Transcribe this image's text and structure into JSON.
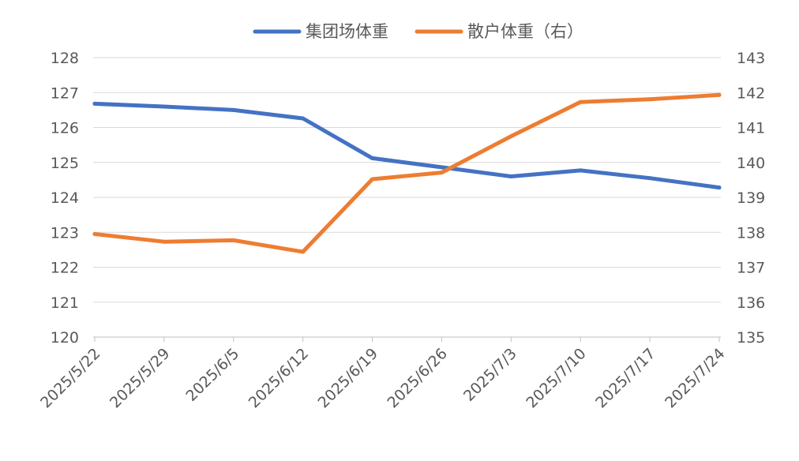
{
  "chart_data": {
    "type": "line",
    "categories": [
      "2025/5/22",
      "2025/5/29",
      "2025/6/5",
      "2025/6/12",
      "2025/6/19",
      "2025/6/26",
      "2025/7/3",
      "2025/7/10",
      "2025/7/17",
      "2025/7/24"
    ],
    "series": [
      {
        "name": "集团场体重",
        "axis": "left",
        "color": "#4472c4",
        "values": [
          126.68,
          126.6,
          126.5,
          126.26,
          125.12,
          124.86,
          124.6,
          124.77,
          124.55,
          124.28
        ]
      },
      {
        "name": "散户体重（右）",
        "axis": "right",
        "color": "#ed7d31",
        "values": [
          137.95,
          137.73,
          137.77,
          137.44,
          139.52,
          139.71,
          140.75,
          141.73,
          141.81,
          141.93
        ]
      }
    ],
    "y_left": {
      "min": 120,
      "max": 128,
      "ticks": [
        120,
        121,
        122,
        123,
        124,
        125,
        126,
        127,
        128
      ]
    },
    "y_right": {
      "min": 135,
      "max": 143,
      "ticks": [
        135,
        136,
        137,
        138,
        139,
        140,
        141,
        142,
        143
      ]
    },
    "grid": true,
    "legend": "top-center"
  }
}
